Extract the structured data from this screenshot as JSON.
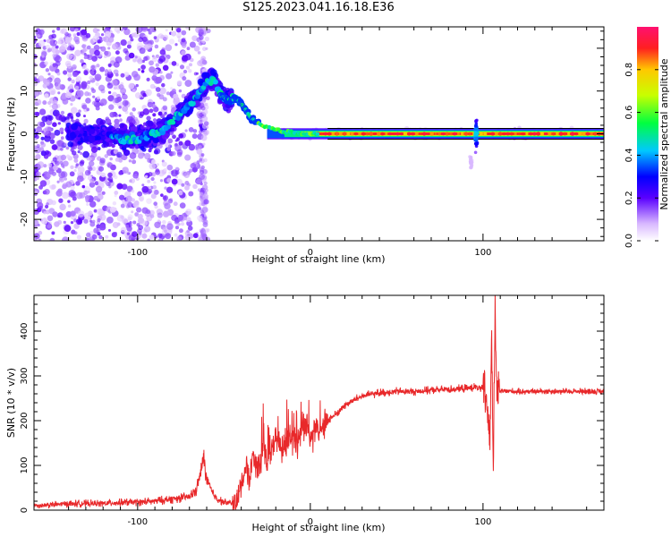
{
  "title": "S125.2023.041.16.18.E36",
  "colors": {
    "axis": "#000000",
    "snr_line": "#e8282a"
  },
  "chart_data": [
    {
      "type": "heatmap",
      "xlabel": "Height of straight line (km)",
      "ylabel": "Frequency (Hz)",
      "xlim": [
        -160,
        170
      ],
      "ylim": [
        -25,
        25
      ],
      "xticks": [
        -100,
        0,
        100
      ],
      "yticks": [
        -20,
        -10,
        0,
        10,
        20
      ],
      "grid": false,
      "ridge": {
        "x": [
          -120,
          -110,
          -100,
          -95,
          -90,
          -85,
          -80,
          -75,
          -70,
          -65,
          -60,
          -56,
          -52,
          -48,
          -45,
          -42,
          -38,
          -35,
          -32,
          -28,
          -24,
          -20,
          -16,
          -12,
          -8,
          -4,
          0,
          10,
          20,
          40,
          60,
          80,
          90,
          95,
          100,
          120,
          140,
          160,
          170
        ],
        "y": [
          0,
          -1,
          -1,
          -0.5,
          0,
          1,
          3,
          5,
          7,
          9,
          12,
          13,
          9,
          8,
          8,
          8,
          6,
          4,
          3,
          2,
          1.5,
          1,
          0.5,
          0.5,
          0,
          0,
          0,
          0,
          0,
          0,
          0,
          0,
          0,
          0,
          0,
          0,
          0,
          0,
          0
        ]
      },
      "colorbar": {
        "label": "Normalized spectral amplitude",
        "range": [
          0,
          1
        ],
        "ticks": [
          "0.0",
          "0.2",
          "0.4",
          "0.6",
          "0.8"
        ]
      }
    },
    {
      "type": "line",
      "xlabel": "Height of straight line (km)",
      "ylabel": "SNR (10 * v/v)",
      "xlim": [
        -160,
        170
      ],
      "ylim": [
        0,
        480
      ],
      "xticks": [
        -100,
        0,
        100
      ],
      "yticks": [
        0,
        100,
        200,
        300,
        400
      ],
      "grid": false,
      "series": [
        {
          "x": [
            -160,
            -150,
            -140,
            -130,
            -120,
            -110,
            -100,
            -90,
            -80,
            -70,
            -66,
            -63,
            -62,
            -60,
            -57,
            -54,
            -50,
            -46,
            -42,
            -40,
            -37,
            -35,
            -33,
            -30,
            -27,
            -25,
            -23,
            -20,
            -17,
            -14,
            -11,
            -8,
            -5,
            -2,
            0,
            3,
            6,
            10,
            15,
            20,
            25,
            30,
            40,
            50,
            60,
            70,
            80,
            90,
            95,
            100,
            102,
            104,
            105,
            106,
            107,
            108,
            110,
            115,
            120,
            130,
            140,
            150,
            160,
            170
          ],
          "y": [
            10,
            12,
            14,
            15,
            15,
            17,
            18,
            20,
            25,
            30,
            45,
            90,
            120,
            70,
            40,
            25,
            18,
            15,
            20,
            60,
            100,
            70,
            130,
            80,
            160,
            100,
            140,
            170,
            130,
            150,
            160,
            140,
            180,
            200,
            150,
            190,
            185,
            200,
            215,
            235,
            245,
            255,
            262,
            265,
            265,
            268,
            270,
            272,
            275,
            270,
            250,
            150,
            420,
            70,
            460,
            260,
            265,
            266,
            265,
            265,
            266,
            265,
            266,
            265
          ]
        }
      ]
    }
  ]
}
